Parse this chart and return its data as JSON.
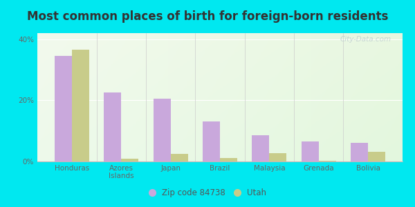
{
  "title": "Most common places of birth for foreign-born residents",
  "categories": [
    "Honduras",
    "Azores\nIslands",
    "Japan",
    "Brazil",
    "Malaysia",
    "Grenada",
    "Bolivia"
  ],
  "zip_values": [
    34.5,
    22.5,
    20.5,
    13.0,
    8.5,
    6.5,
    6.0
  ],
  "utah_values": [
    36.5,
    0.8,
    2.5,
    1.2,
    2.8,
    0.3,
    3.2
  ],
  "zip_color": "#c9a8dc",
  "utah_color": "#c8cc8a",
  "background_outer": "#00e8f0",
  "background_inner": "#edf8e8",
  "legend_zip_label": "Zip code 84738",
  "legend_utah_label": "Utah",
  "ylim": [
    0,
    42
  ],
  "yticks": [
    0,
    20,
    40
  ],
  "ytick_labels": [
    "0%",
    "20%",
    "40%"
  ],
  "bar_width": 0.35,
  "title_fontsize": 12,
  "tick_fontsize": 7.5,
  "legend_fontsize": 8.5,
  "watermark": "City-Data.com"
}
